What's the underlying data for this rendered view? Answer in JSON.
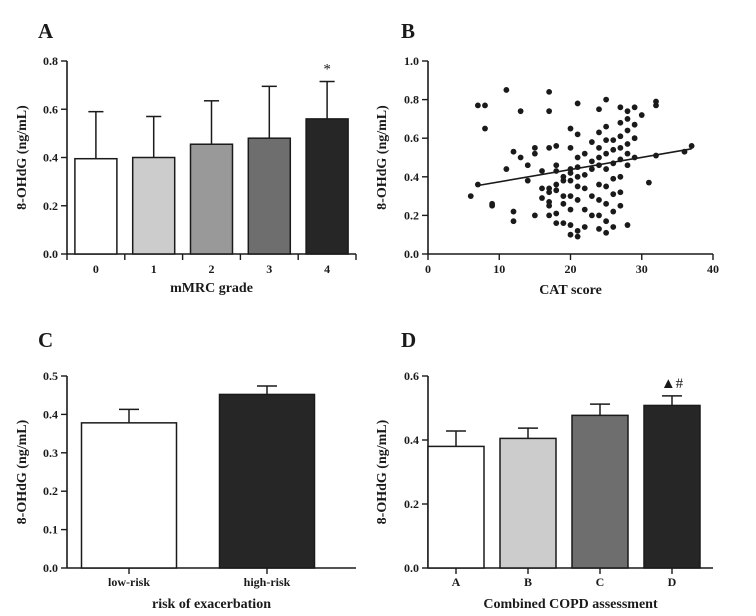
{
  "chart_data": [
    {
      "panel": "A",
      "type": "bar",
      "categories": [
        "0",
        "1",
        "2",
        "3",
        "4"
      ],
      "values": [
        0.395,
        0.4,
        0.455,
        0.48,
        0.56
      ],
      "errors": [
        0.195,
        0.17,
        0.18,
        0.215,
        0.155
      ],
      "fills": [
        "#ffffff",
        "#cccccc",
        "#999999",
        "#6e6e6e",
        "#262626"
      ],
      "annotations": [
        "",
        "",
        "",
        "",
        "*"
      ],
      "xlabel": "mMRC grade",
      "ylabel": "8-OHdG (ng/mL)",
      "ylim": [
        0,
        0.8
      ],
      "yticks": [
        "0.0",
        "0.2",
        "0.4",
        "0.6",
        "0.8"
      ]
    },
    {
      "panel": "B",
      "type": "scatter",
      "xlabel": "CAT score",
      "ylabel": "8-OHdG (ng/mL)",
      "xlim": [
        0,
        40
      ],
      "ylim": [
        0,
        1.0
      ],
      "xticks": [
        "0",
        "10",
        "20",
        "30",
        "40"
      ],
      "yticks": [
        "0.0",
        "0.2",
        "0.4",
        "0.6",
        "0.8",
        "1.0"
      ],
      "trendline": {
        "x": [
          7,
          37
        ],
        "y": [
          0.355,
          0.545
        ]
      },
      "points": [
        [
          6,
          0.3
        ],
        [
          7,
          0.36
        ],
        [
          7,
          0.77
        ],
        [
          8,
          0.65
        ],
        [
          8,
          0.77
        ],
        [
          9,
          0.25
        ],
        [
          9,
          0.26
        ],
        [
          11,
          0.85
        ],
        [
          11,
          0.44
        ],
        [
          12,
          0.22
        ],
        [
          12,
          0.17
        ],
        [
          12,
          0.53
        ],
        [
          13,
          0.5
        ],
        [
          13,
          0.74
        ],
        [
          14,
          0.46
        ],
        [
          14,
          0.38
        ],
        [
          15,
          0.52
        ],
        [
          15,
          0.2
        ],
        [
          15,
          0.55
        ],
        [
          16,
          0.43
        ],
        [
          16,
          0.34
        ],
        [
          16,
          0.29
        ],
        [
          17,
          0.84
        ],
        [
          17,
          0.74
        ],
        [
          17,
          0.55
        ],
        [
          17,
          0.34
        ],
        [
          17,
          0.32
        ],
        [
          17,
          0.27
        ],
        [
          17,
          0.25
        ],
        [
          17,
          0.2
        ],
        [
          18,
          0.56
        ],
        [
          18,
          0.46
        ],
        [
          18,
          0.43
        ],
        [
          18,
          0.36
        ],
        [
          18,
          0.33
        ],
        [
          18,
          0.21
        ],
        [
          18,
          0.16
        ],
        [
          19,
          0.4
        ],
        [
          19,
          0.38
        ],
        [
          19,
          0.3
        ],
        [
          19,
          0.26
        ],
        [
          19,
          0.16
        ],
        [
          20,
          0.65
        ],
        [
          20,
          0.55
        ],
        [
          20,
          0.44
        ],
        [
          20,
          0.42
        ],
        [
          20,
          0.38
        ],
        [
          20,
          0.3
        ],
        [
          20,
          0.23
        ],
        [
          20,
          0.15
        ],
        [
          20,
          0.1
        ],
        [
          21,
          0.78
        ],
        [
          21,
          0.62
        ],
        [
          21,
          0.5
        ],
        [
          21,
          0.45
        ],
        [
          21,
          0.4
        ],
        [
          21,
          0.35
        ],
        [
          21,
          0.28
        ],
        [
          21,
          0.12
        ],
        [
          21,
          0.09
        ],
        [
          22,
          0.52
        ],
        [
          22,
          0.41
        ],
        [
          22,
          0.34
        ],
        [
          22,
          0.23
        ],
        [
          22,
          0.14
        ],
        [
          23,
          0.58
        ],
        [
          23,
          0.48
        ],
        [
          23,
          0.44
        ],
        [
          23,
          0.3
        ],
        [
          23,
          0.2
        ],
        [
          24,
          0.75
        ],
        [
          24,
          0.63
        ],
        [
          24,
          0.55
        ],
        [
          24,
          0.5
        ],
        [
          24,
          0.46
        ],
        [
          24,
          0.36
        ],
        [
          24,
          0.28
        ],
        [
          24,
          0.2
        ],
        [
          24,
          0.13
        ],
        [
          25,
          0.8
        ],
        [
          25,
          0.66
        ],
        [
          25,
          0.59
        ],
        [
          25,
          0.52
        ],
        [
          25,
          0.44
        ],
        [
          25,
          0.35
        ],
        [
          25,
          0.26
        ],
        [
          25,
          0.17
        ],
        [
          25,
          0.11
        ],
        [
          26,
          0.59
        ],
        [
          26,
          0.54
        ],
        [
          26,
          0.47
        ],
        [
          26,
          0.39
        ],
        [
          26,
          0.31
        ],
        [
          26,
          0.22
        ],
        [
          26,
          0.14
        ],
        [
          27,
          0.76
        ],
        [
          27,
          0.68
        ],
        [
          27,
          0.61
        ],
        [
          27,
          0.55
        ],
        [
          27,
          0.49
        ],
        [
          27,
          0.4
        ],
        [
          27,
          0.32
        ],
        [
          27,
          0.25
        ],
        [
          28,
          0.74
        ],
        [
          28,
          0.7
        ],
        [
          28,
          0.64
        ],
        [
          28,
          0.57
        ],
        [
          28,
          0.52
        ],
        [
          28,
          0.46
        ],
        [
          28,
          0.15
        ],
        [
          29,
          0.76
        ],
        [
          29,
          0.67
        ],
        [
          29,
          0.6
        ],
        [
          29,
          0.5
        ],
        [
          30,
          0.72
        ],
        [
          31,
          0.37
        ],
        [
          32,
          0.79
        ],
        [
          32,
          0.77
        ],
        [
          32,
          0.51
        ],
        [
          36,
          0.53
        ],
        [
          37,
          0.56
        ]
      ]
    },
    {
      "panel": "C",
      "type": "bar",
      "categories": [
        "low-risk",
        "high-risk"
      ],
      "values": [
        0.378,
        0.452
      ],
      "errors": [
        0.035,
        0.022
      ],
      "fills": [
        "#ffffff",
        "#262626"
      ],
      "annotations": [
        "",
        ""
      ],
      "xlabel": "risk of exacerbation",
      "ylabel": "8-OHdG (ng/mL)",
      "ylim": [
        0,
        0.5
      ],
      "yticks": [
        "0.0",
        "0.1",
        "0.2",
        "0.3",
        "0.4",
        "0.5"
      ]
    },
    {
      "panel": "D",
      "type": "bar",
      "categories": [
        "A",
        "B",
        "C",
        "D"
      ],
      "values": [
        0.38,
        0.405,
        0.477,
        0.508
      ],
      "errors": [
        0.048,
        0.032,
        0.035,
        0.03
      ],
      "fills": [
        "#ffffff",
        "#cccccc",
        "#6e6e6e",
        "#262626"
      ],
      "annotations": [
        "",
        "",
        "",
        "▲#"
      ],
      "xlabel": "Combined COPD assessment",
      "ylabel": "8-OHdG (ng/mL)",
      "ylim": [
        0,
        0.6
      ],
      "yticks": [
        "0.0",
        "0.2",
        "0.4",
        "0.6"
      ]
    }
  ],
  "colors": {
    "ink": "#1a1a1a",
    "background": "#ffffff"
  }
}
